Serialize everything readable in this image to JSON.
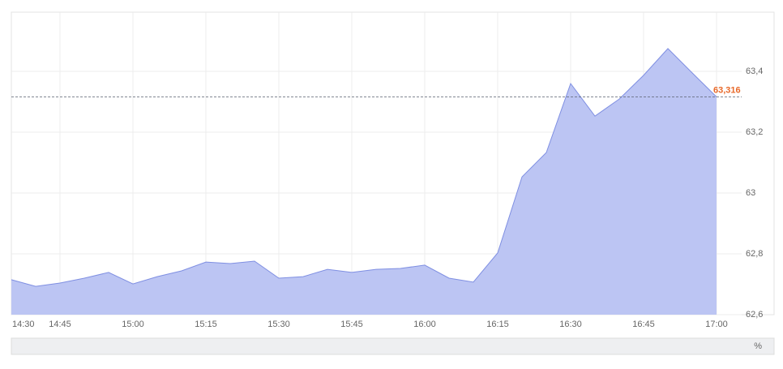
{
  "chart_data": {
    "type": "area",
    "x": [
      "14:35",
      "14:40",
      "14:45",
      "14:50",
      "14:55",
      "15:00",
      "15:05",
      "15:10",
      "15:15",
      "15:20",
      "15:25",
      "15:30",
      "15:35",
      "15:40",
      "15:45",
      "15:50",
      "15:55",
      "16:00",
      "16:05",
      "16:10",
      "16:15",
      "16:20",
      "16:25",
      "16:30",
      "16:35",
      "16:40",
      "16:45",
      "16:50",
      "16:55",
      "17:00"
    ],
    "values": [
      62.715,
      62.693,
      62.704,
      62.72,
      62.739,
      62.701,
      62.725,
      62.744,
      62.773,
      62.768,
      62.776,
      62.72,
      62.725,
      62.749,
      62.739,
      62.749,
      62.752,
      62.763,
      62.72,
      62.707,
      62.803,
      63.053,
      63.133,
      63.36,
      63.253,
      63.309,
      63.387,
      63.475,
      63.395,
      63.316
    ],
    "color": "#bcc5f3",
    "line_color": "#7f8fe2",
    "xlim": [
      "14:35",
      "17:00"
    ],
    "xticks": [
      "14:30",
      "14:45",
      "15:00",
      "15:15",
      "15:30",
      "15:45",
      "16:00",
      "16:15",
      "16:30",
      "16:45",
      "17:00"
    ],
    "ylim": [
      62.6,
      63.6
    ],
    "yticks": [
      {
        "value": 62.6,
        "label": "62,6"
      },
      {
        "value": 62.8,
        "label": "62,8"
      },
      63,
      {
        "value": 63.2,
        "label": "63,2"
      },
      {
        "value": 63.4,
        "label": "63,4"
      }
    ],
    "grid": true,
    "last_value": 63.316,
    "last_label": "63,316",
    "last_color": "#e8692a",
    "unit_label": "%"
  }
}
